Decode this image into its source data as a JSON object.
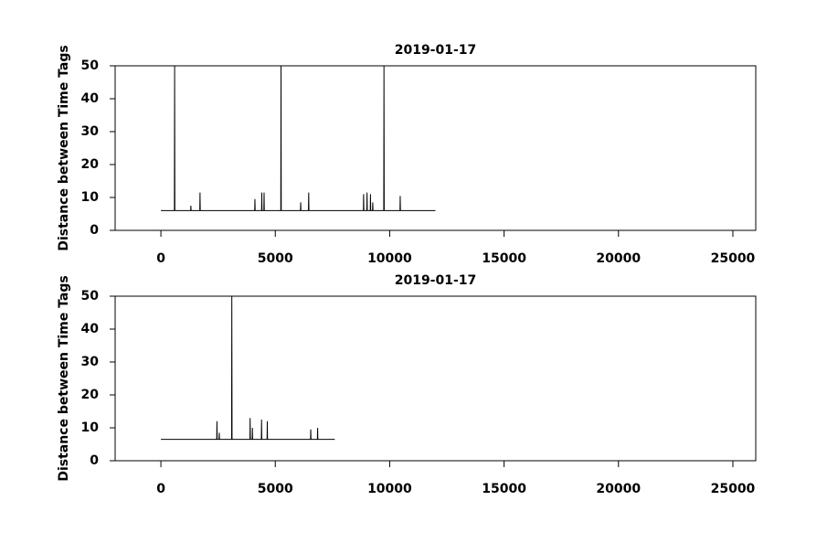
{
  "chart_data": [
    {
      "type": "line",
      "title": "2019-01-17",
      "y_label": "Distance between Time Tags",
      "color": "#000000",
      "xlim": [
        -2000,
        26000
      ],
      "ylim": [
        0,
        50
      ],
      "xticks": [
        0,
        5000,
        10000,
        15000,
        20000,
        25000
      ],
      "yticks": [
        0,
        10,
        20,
        30,
        40,
        50
      ],
      "x": [
        0,
        590,
        600,
        610,
        1300,
        1310,
        1320,
        1700,
        1710,
        1720,
        4100,
        4110,
        4120,
        4400,
        4410,
        4420,
        4500,
        4510,
        4520,
        5240,
        5250,
        5260,
        6100,
        6110,
        6120,
        6450,
        6460,
        6470,
        8850,
        8860,
        8870,
        9000,
        9010,
        9020,
        9150,
        9160,
        9170,
        9250,
        9260,
        9270,
        9740,
        9750,
        9760,
        10450,
        10460,
        10470,
        12000
      ],
      "values": [
        6,
        6,
        50,
        6,
        6,
        7.5,
        6,
        6,
        11.5,
        6,
        6,
        9.5,
        6,
        6,
        11.5,
        6,
        6,
        11.5,
        6,
        6,
        50,
        6,
        6,
        8.5,
        6,
        6,
        11.5,
        6,
        6,
        11,
        6,
        6,
        11.5,
        6,
        6,
        11,
        6,
        6,
        8.5,
        6,
        6,
        50,
        6,
        6,
        10.5,
        6,
        6
      ]
    },
    {
      "type": "line",
      "title": "2019-01-17",
      "y_label": "Distance between Time Tags",
      "color": "#000000",
      "xlim": [
        -2000,
        26000
      ],
      "ylim": [
        0,
        50
      ],
      "xticks": [
        0,
        5000,
        10000,
        15000,
        20000,
        25000
      ],
      "yticks": [
        0,
        10,
        20,
        30,
        40,
        50
      ],
      "x": [
        0,
        2440,
        2450,
        2460,
        2540,
        2550,
        2560,
        3090,
        3100,
        3110,
        3890,
        3900,
        3910,
        3990,
        4000,
        4010,
        4390,
        4400,
        4410,
        4640,
        4650,
        4660,
        6540,
        6550,
        6560,
        6840,
        6850,
        6860,
        7600
      ],
      "values": [
        6.5,
        6.5,
        12,
        6.5,
        6.5,
        8.5,
        6.5,
        6.5,
        50,
        6.5,
        6.5,
        13,
        6.5,
        6.5,
        10,
        6.5,
        6.5,
        12.5,
        6.5,
        6.5,
        12,
        6.5,
        6.5,
        9.5,
        6.5,
        6.5,
        10,
        6.5,
        6.5
      ]
    }
  ]
}
